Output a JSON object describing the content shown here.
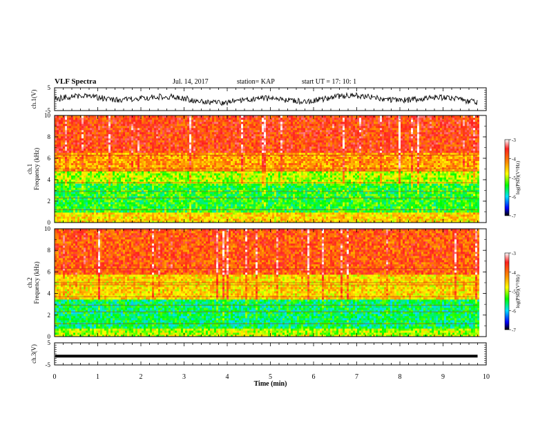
{
  "header": {
    "title": "VLF Spectra",
    "date": "Jul. 14, 2017",
    "station": "station= KAP",
    "start_ut": "start UT =  17: 10: 1"
  },
  "colors": {
    "ink": "#000000",
    "spectrogram_high": "#ff3b00",
    "spectrogram_mid": "#ffe400",
    "spectrogram_low": "#38e038",
    "spectrogram_floor": "#00d6c8"
  },
  "chart_data": [
    {
      "type": "line",
      "name": "ch1-waveform",
      "ylabel": "ch.1(V)",
      "yticks": [
        "5",
        "-5"
      ],
      "ylim": [
        -5,
        5
      ],
      "xlim": [
        0,
        10
      ],
      "data_end_min": 9.8,
      "note_value_range": [
        -3,
        3
      ]
    },
    {
      "type": "heatmap",
      "name": "ch1-spectrogram",
      "ylabel": "ch.1\nFrequency (kHz)",
      "ylabel_line1": "ch.1",
      "ylabel_line2": "Frequency (kHz)",
      "yticks": [
        "0",
        "2",
        "4",
        "6",
        "8",
        "10"
      ],
      "ylim": [
        0,
        10
      ],
      "xlim": [
        0,
        10
      ],
      "data_end_min": 9.8,
      "bands_khz": [
        {
          "from": 0.0,
          "to": 1.0,
          "level": -4.6
        },
        {
          "from": 1.0,
          "to": 3.6,
          "level": -5.4
        },
        {
          "from": 3.6,
          "to": 4.9,
          "level": -5.0
        },
        {
          "from": 4.9,
          "to": 6.5,
          "level": -4.3
        },
        {
          "from": 6.5,
          "to": 10.0,
          "level": -3.8
        }
      ],
      "colorbar": {
        "label": "log(PSD)(V²/Hz)",
        "ticks": [
          "-3",
          "-4",
          "-5",
          "-6",
          "-7"
        ],
        "range": [
          -7,
          -3
        ]
      }
    },
    {
      "type": "heatmap",
      "name": "ch2-spectrogram",
      "ylabel": "ch.2\nFrequency (kHz)",
      "ylabel_line1": "ch.2",
      "ylabel_line2": "Frequency (kHz)",
      "yticks": [
        "0",
        "2",
        "4",
        "6",
        "8",
        "10"
      ],
      "ylim": [
        0,
        10
      ],
      "xlim": [
        0,
        10
      ],
      "data_end_min": 9.8,
      "bands_khz": [
        {
          "from": 0.0,
          "to": 0.8,
          "level": -5.0
        },
        {
          "from": 0.8,
          "to": 3.4,
          "level": -5.6
        },
        {
          "from": 3.4,
          "to": 5.8,
          "level": -4.6
        },
        {
          "from": 5.8,
          "to": 10.0,
          "level": -3.9
        }
      ],
      "colorbar": {
        "label": "log(PSD)(V²/Hz)",
        "ticks": [
          "-3",
          "-4",
          "-5",
          "-6",
          "-7"
        ],
        "range": [
          -7,
          -3
        ]
      }
    },
    {
      "type": "line",
      "name": "ch3-waveform",
      "ylabel": "ch.3(V)",
      "yticks": [
        "5",
        "-5"
      ],
      "ylim": [
        -5,
        5
      ],
      "xlim": [
        0,
        10
      ],
      "data_end_min": 9.8,
      "constant_value": -1
    }
  ],
  "xaxis": {
    "label": "Time (min)",
    "ticks": [
      "0",
      "1",
      "2",
      "3",
      "4",
      "5",
      "6",
      "7",
      "8",
      "9",
      "10"
    ]
  }
}
